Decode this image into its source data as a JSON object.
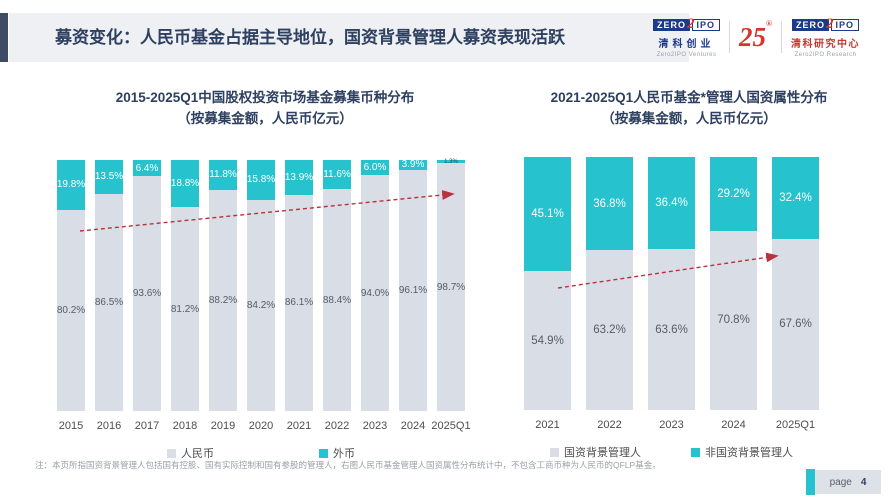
{
  "header": {
    "title": "募资变化：人民币基金占据主导地位，国资背景管理人募资表现活跃"
  },
  "logos": {
    "left": {
      "zero": "ZERO",
      "two": "2",
      "ipo": "IPO",
      "cn": "清科创业",
      "en": "Zero2IPO Ventures"
    },
    "anniversary": "25",
    "anniversary_mark": "®",
    "right": {
      "zero": "ZERO",
      "two": "2",
      "ipo": "IPO",
      "cn": "清科研究中心",
      "en": "Zero2IPO Research"
    }
  },
  "colors": {
    "teal": "#26c3ce",
    "gray": "#d9dde6",
    "navy": "#2e4060",
    "arrow_red": "#b8333e"
  },
  "chart_data": [
    {
      "type": "bar",
      "stacked": true,
      "percent": true,
      "grid": false,
      "legend_position": "bottom",
      "title_line1": "2015-2025Q1中国股权投资市场基金募集币种分布",
      "title_line2": "（按募集金额，人民币亿元）",
      "categories": [
        "2015",
        "2016",
        "2017",
        "2018",
        "2019",
        "2020",
        "2021",
        "2022",
        "2023",
        "2024",
        "2025Q1"
      ],
      "series": [
        {
          "name": "人民币",
          "color_key": "gray",
          "values": [
            80.2,
            86.5,
            93.6,
            81.2,
            88.2,
            84.2,
            86.1,
            88.4,
            94.0,
            96.1,
            98.7
          ],
          "labels": [
            "80.2%",
            "86.5%",
            "93.6%",
            "81.2%",
            "88.2%",
            "84.2%",
            "86.1%",
            "88.4%",
            "94.0%",
            "96.1%",
            "98.7%"
          ]
        },
        {
          "name": "外币",
          "color_key": "teal",
          "values": [
            19.8,
            13.5,
            6.4,
            18.8,
            11.8,
            15.8,
            13.9,
            11.6,
            6.0,
            3.9,
            1.3
          ],
          "labels": [
            "19.8%",
            "13.5%",
            "6.4%",
            "18.8%",
            "11.8%",
            "15.8%",
            "13.9%",
            "11.6%",
            "6.0%",
            "3.9%",
            "1.3%"
          ]
        }
      ],
      "annotation": "red dashed trend arrow rising left to right"
    },
    {
      "type": "bar",
      "stacked": true,
      "percent": true,
      "grid": false,
      "legend_position": "bottom",
      "title_line1": "2021-2025Q1人民币基金*管理人国资属性分布",
      "title_line2": "（按募集金额，人民币亿元）",
      "categories": [
        "2021",
        "2022",
        "2023",
        "2024",
        "2025Q1"
      ],
      "series": [
        {
          "name": "国资背景管理人",
          "color_key": "gray",
          "values": [
            54.9,
            63.2,
            63.6,
            70.8,
            67.6
          ],
          "labels": [
            "54.9%",
            "63.2%",
            "63.6%",
            "70.8%",
            "67.6%"
          ]
        },
        {
          "name": "非国资背景管理人",
          "color_key": "teal",
          "values": [
            45.1,
            36.8,
            36.4,
            29.2,
            32.4
          ],
          "labels": [
            "45.1%",
            "36.8%",
            "36.4%",
            "29.2%",
            "32.4%"
          ]
        }
      ],
      "annotation": "red dashed trend arrow rising left to right"
    }
  ],
  "footnote": "注：本页所指国资背景管理人包括国有控股、国有实际控制和国有参股的管理人，右图人民币基金管理人国资属性分布统计中，不包含工商币种为人民币的QFLP基金。",
  "page": {
    "label": "page",
    "number": "4"
  }
}
